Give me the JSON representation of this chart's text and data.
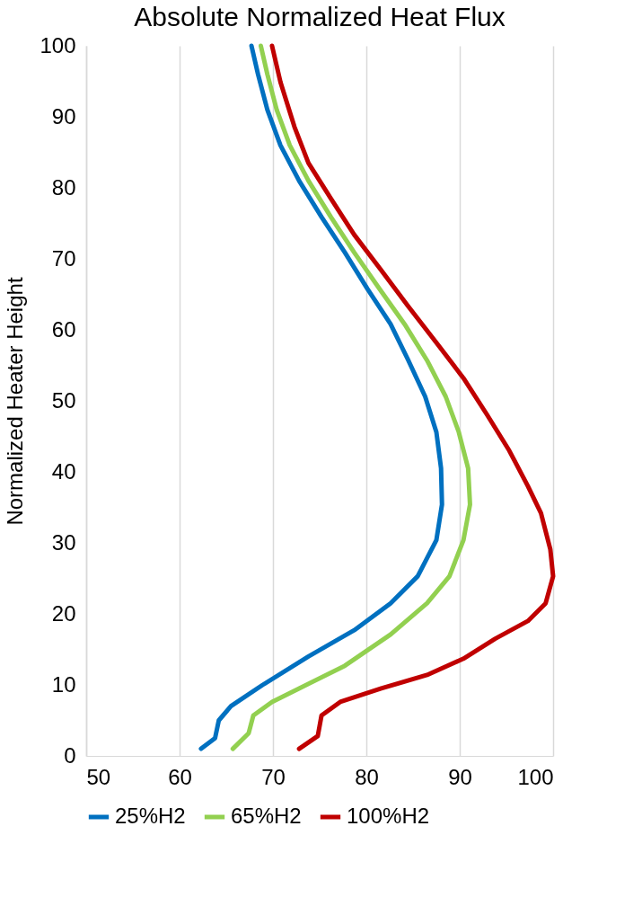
{
  "chart_data": {
    "type": "line",
    "title": "Absolute Normalized Heat Flux",
    "ylabel": "Normalized Heater Height",
    "xlim": [
      50,
      100
    ],
    "xticks": [
      50,
      60,
      70,
      80,
      90,
      100
    ],
    "ylim": [
      0,
      100
    ],
    "yticks": [
      0,
      10,
      20,
      30,
      40,
      50,
      60,
      70,
      80,
      90,
      100
    ],
    "grid": "x",
    "legend": "bottom",
    "marker": "none",
    "line_style": "solid",
    "series": [
      {
        "name": "25%H2",
        "color": "#0070c0",
        "x": [
          62.3,
          63.8,
          64.2,
          65.5,
          68.9,
          73.8,
          78.7,
          82.6,
          85.5,
          87.5,
          88.1,
          88.0,
          87.5,
          86.3,
          84.5,
          82.6,
          80.1,
          77.7,
          75.2,
          72.8,
          70.8,
          69.4,
          68.4,
          67.7
        ],
        "values": [
          1,
          2.5,
          5,
          7,
          10,
          14,
          17.7,
          21.5,
          25.3,
          30.4,
          35.4,
          40.5,
          45.6,
          50.6,
          55.7,
          60.8,
          65.8,
          70.9,
          75.9,
          81,
          86,
          91,
          96,
          100
        ]
      },
      {
        "name": "65%H2",
        "color": "#92d050",
        "x": [
          65.7,
          67.4,
          67.9,
          69.9,
          72.8,
          77.7,
          82.6,
          86.5,
          88.9,
          90.4,
          91.1,
          90.9,
          89.9,
          88.5,
          86.5,
          84.1,
          81.4,
          78.7,
          76.2,
          73.8,
          71.8,
          70.4,
          69.4,
          68.7
        ],
        "values": [
          1,
          3.2,
          5.7,
          7.6,
          9.5,
          12.7,
          17.1,
          21.5,
          25.3,
          30.4,
          35.4,
          40.5,
          45.6,
          50.6,
          55.7,
          60.8,
          65.8,
          70.9,
          75.9,
          81,
          86,
          91,
          96,
          100
        ]
      },
      {
        "name": "100%H2",
        "color": "#c00000",
        "x": [
          72.8,
          74.8,
          75.2,
          77.2,
          81.6,
          86.5,
          90.4,
          93.8,
          97.3,
          99.2,
          100,
          99.7,
          98.7,
          97.3,
          95.3,
          92.9,
          90.4,
          87.5,
          84.5,
          81.6,
          78.7,
          76.2,
          73.8,
          72.3,
          70.8,
          69.9
        ],
        "values": [
          1,
          2.8,
          5.7,
          7.6,
          9.5,
          11.4,
          13.7,
          16.5,
          19,
          21.5,
          25.3,
          29.1,
          34.2,
          38,
          43,
          48.1,
          53.2,
          58.2,
          63.3,
          68.4,
          73.4,
          78.5,
          83.5,
          88.6,
          94.9,
          100
        ]
      }
    ]
  }
}
